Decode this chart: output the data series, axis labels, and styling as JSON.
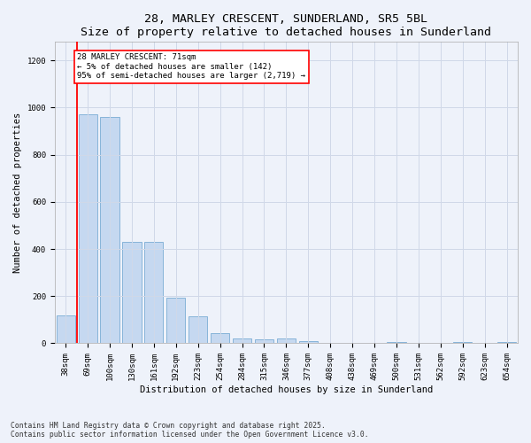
{
  "title_line1": "28, MARLEY CRESCENT, SUNDERLAND, SR5 5BL",
  "title_line2": "Size of property relative to detached houses in Sunderland",
  "xlabel": "Distribution of detached houses by size in Sunderland",
  "ylabel": "Number of detached properties",
  "categories": [
    "38sqm",
    "69sqm",
    "100sqm",
    "130sqm",
    "161sqm",
    "192sqm",
    "223sqm",
    "254sqm",
    "284sqm",
    "315sqm",
    "346sqm",
    "377sqm",
    "408sqm",
    "438sqm",
    "469sqm",
    "500sqm",
    "531sqm",
    "562sqm",
    "592sqm",
    "623sqm",
    "654sqm"
  ],
  "values": [
    120,
    970,
    960,
    430,
    430,
    192,
    113,
    45,
    20,
    18,
    20,
    8,
    0,
    0,
    0,
    5,
    0,
    0,
    7,
    0,
    5
  ],
  "bar_color": "#c5d8f0",
  "bar_edge_color": "#7aadd4",
  "grid_color": "#d0d8e8",
  "vline_color": "red",
  "annotation_text": "28 MARLEY CRESCENT: 71sqm\n← 5% of detached houses are smaller (142)\n95% of semi-detached houses are larger (2,719) →",
  "annotation_box_color": "white",
  "annotation_box_edge_color": "red",
  "ylim": [
    0,
    1280
  ],
  "yticks": [
    0,
    200,
    400,
    600,
    800,
    1000,
    1200
  ],
  "footer": "Contains HM Land Registry data © Crown copyright and database right 2025.\nContains public sector information licensed under the Open Government Licence v3.0.",
  "bg_color": "#eef2fa",
  "title_fontsize": 9.5,
  "tick_fontsize": 6.5,
  "axis_label_fontsize": 7.5
}
